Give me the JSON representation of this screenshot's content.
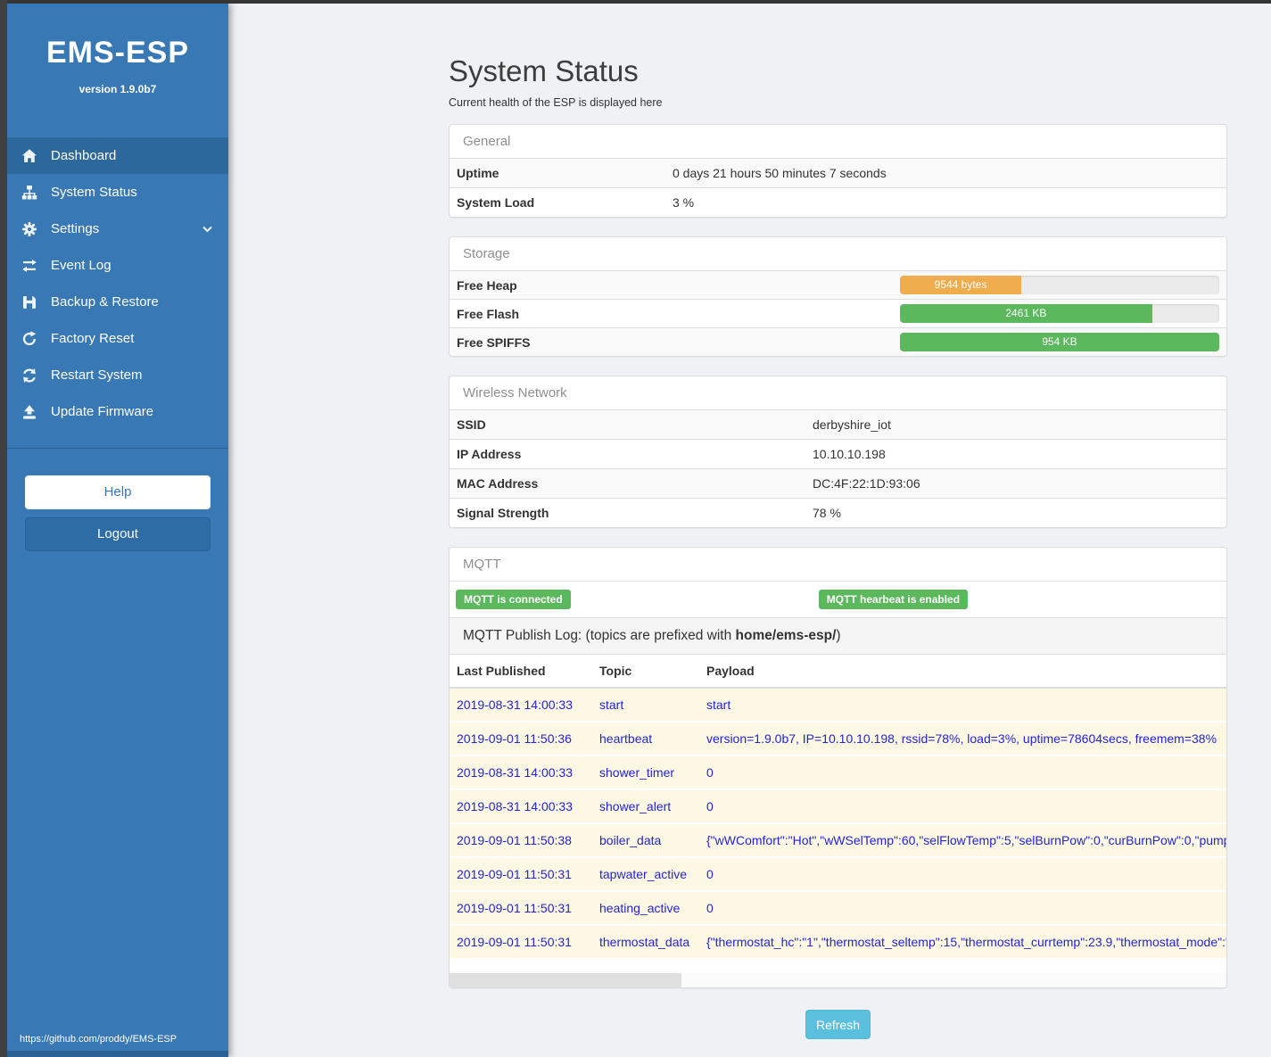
{
  "sidebar": {
    "brand": "EMS-ESP",
    "version": "version 1.9.0b7",
    "items": [
      {
        "label": "Dashboard",
        "icon": "home-icon",
        "active": true
      },
      {
        "label": "System Status",
        "icon": "sitemap-icon",
        "active": false
      },
      {
        "label": "Settings",
        "icon": "gear-icon",
        "active": false,
        "chevron": "chevron-down-icon"
      },
      {
        "label": "Event Log",
        "icon": "exchange-icon",
        "active": false
      },
      {
        "label": "Backup & Restore",
        "icon": "save-icon",
        "active": false
      },
      {
        "label": "Factory Reset",
        "icon": "repeat-icon",
        "active": false
      },
      {
        "label": "Restart System",
        "icon": "refresh-icon",
        "active": false
      },
      {
        "label": "Update Firmware",
        "icon": "upload-icon",
        "active": false
      }
    ],
    "help_label": "Help",
    "logout_label": "Logout",
    "footer_link": "https://github.com/proddy/EMS-ESP"
  },
  "header": {
    "title": "System Status",
    "subtitle": "Current health of the ESP is displayed here"
  },
  "general": {
    "panel_title": "General",
    "rows": [
      {
        "label": "Uptime",
        "value": "0 days 21 hours 50 minutes 7 seconds"
      },
      {
        "label": "System Load",
        "value": "3 %"
      }
    ]
  },
  "storage": {
    "panel_title": "Storage",
    "rows": [
      {
        "label": "Free Heap",
        "value": "9544 bytes",
        "percent": 38,
        "color": "#f0ad4e"
      },
      {
        "label": "Free Flash",
        "value": "2461 KB",
        "percent": 79,
        "color": "#5cb85c"
      },
      {
        "label": "Free SPIFFS",
        "value": "954 KB",
        "percent": 100,
        "color": "#5cb85c"
      }
    ]
  },
  "wireless": {
    "panel_title": "Wireless Network",
    "rows": [
      {
        "label": "SSID",
        "value": "derbyshire_iot"
      },
      {
        "label": "IP Address",
        "value": "10.10.10.198"
      },
      {
        "label": "MAC Address",
        "value": "DC:4F:22:1D:93:06"
      },
      {
        "label": "Signal Strength",
        "value": "78 %"
      }
    ]
  },
  "mqtt": {
    "panel_title": "MQTT",
    "badges": [
      {
        "label": "MQTT is connected",
        "color": "#5cb85c"
      },
      {
        "label": "MQTT hearbeat is enabled",
        "color": "#5cb85c"
      }
    ],
    "publish_log": {
      "prefix": "MQTT Publish Log: (topics are prefixed with ",
      "bold": "home/ems-esp/",
      "suffix": ")"
    },
    "columns": [
      "Last Published",
      "Topic",
      "Payload"
    ],
    "rows": [
      {
        "time": "2019-08-31 14:00:33",
        "topic": "start",
        "payload": "start"
      },
      {
        "time": "2019-09-01 11:50:36",
        "topic": "heartbeat",
        "payload": "version=1.9.0b7, IP=10.10.10.198, rssid=78%, load=3%, uptime=78604secs, freemem=38%"
      },
      {
        "time": "2019-08-31 14:00:33",
        "topic": "shower_timer",
        "payload": "0"
      },
      {
        "time": "2019-08-31 14:00:33",
        "topic": "shower_alert",
        "payload": "0"
      },
      {
        "time": "2019-09-01 11:50:38",
        "topic": "boiler_data",
        "payload": "{\"wWComfort\":\"Hot\",\"wWSelTemp\":60,\"selFlowTemp\":5,\"selBurnPow\":0,\"curBurnPow\":0,\"pump"
      },
      {
        "time": "2019-09-01 11:50:31",
        "topic": "tapwater_active",
        "payload": "0"
      },
      {
        "time": "2019-09-01 11:50:31",
        "topic": "heating_active",
        "payload": "0"
      },
      {
        "time": "2019-09-01 11:50:31",
        "topic": "thermostat_data",
        "payload": "{\"thermostat_hc\":\"1\",\"thermostat_seltemp\":15,\"thermostat_currtemp\":23.9,\"thermostat_mode\":\""
      }
    ]
  },
  "actions": {
    "refresh_label": "Refresh"
  },
  "colors": {
    "sidebar_blue": "#3878b4",
    "active_item_blue": "#2d689c",
    "success_green": "#5cb85c",
    "warning_orange": "#f0ad4e",
    "info_blue": "#5bc0de",
    "log_row_yellow": "#fcf8e3",
    "log_text_blue": "#2424d4"
  }
}
